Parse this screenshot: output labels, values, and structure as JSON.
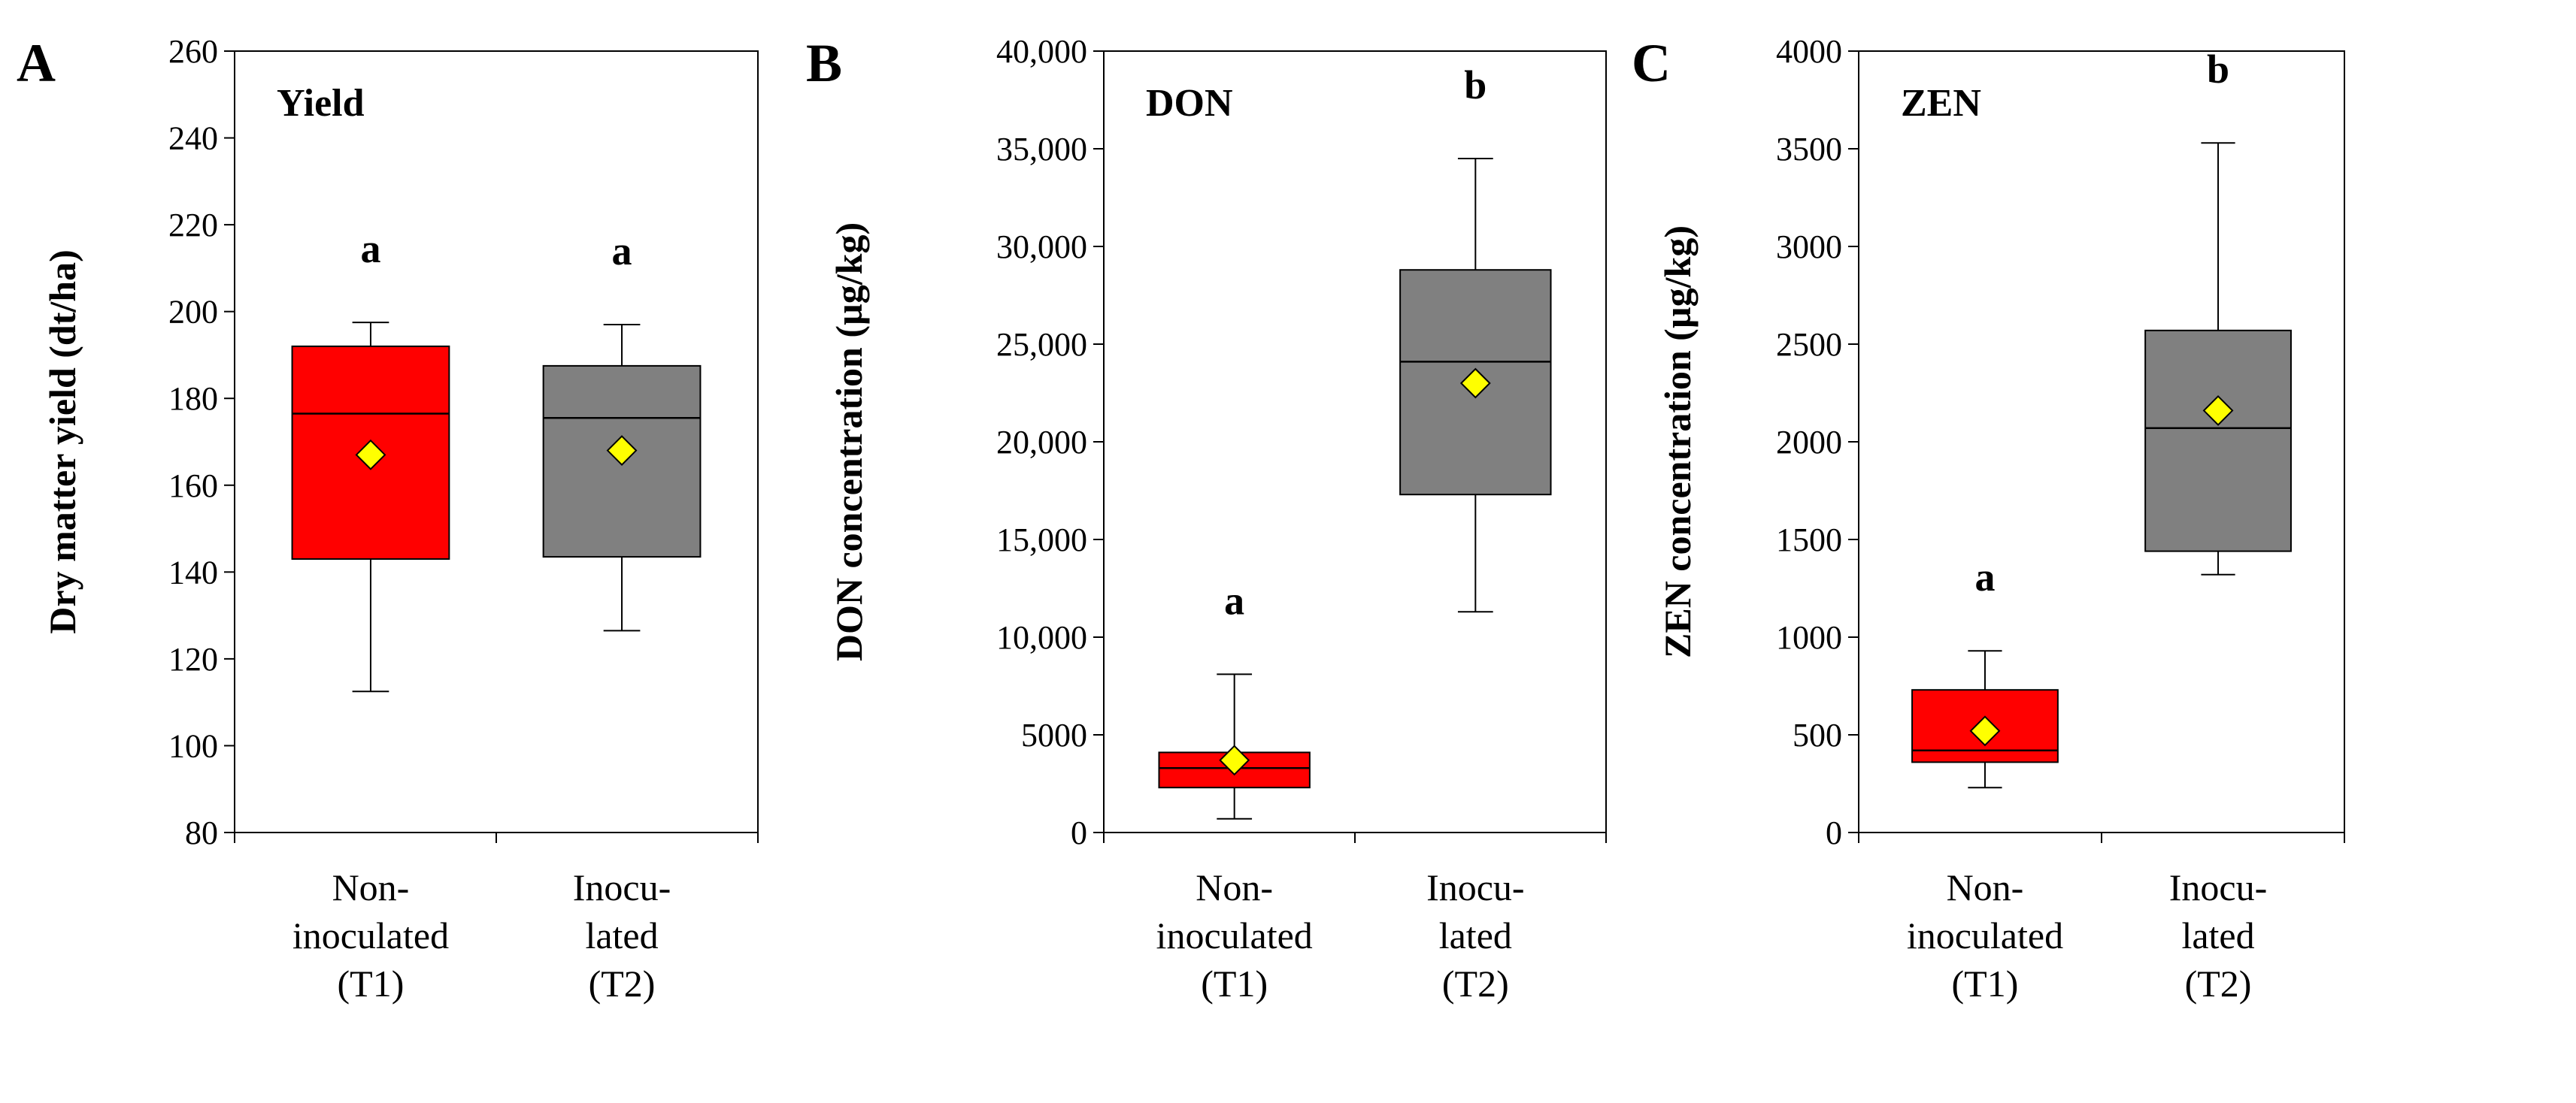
{
  "chart_data": [
    {
      "type": "boxplot",
      "panel_letter": "A",
      "title": "Yield",
      "ylabel": "Dry matter yield (dt/ha)",
      "xlabel": "",
      "ylim": [
        80,
        260
      ],
      "yticks": [
        80,
        100,
        120,
        140,
        160,
        180,
        200,
        220,
        240,
        260
      ],
      "ytick_labels": [
        "80",
        "100",
        "120",
        "140",
        "160",
        "180",
        "200",
        "220",
        "240",
        "260"
      ],
      "categories": [
        {
          "lines": [
            "Non-",
            "inoculated",
            "(T1)"
          ]
        },
        {
          "lines": [
            "Inocu-",
            "lated",
            "(T2)"
          ]
        }
      ],
      "boxes": [
        {
          "name": "Non-inoculated (T1)",
          "color": "#ff0000",
          "whisker_low": 112.5,
          "q1": 143,
          "median": 176.5,
          "q3": 192,
          "whisker_high": 197.5,
          "mean": 167,
          "sig": "a"
        },
        {
          "name": "Inoculated (T2)",
          "color": "#808080",
          "whisker_low": 126.5,
          "q1": 143.5,
          "median": 175.5,
          "q3": 187.5,
          "whisker_high": 197,
          "mean": 168,
          "sig": "a"
        }
      ]
    },
    {
      "type": "boxplot",
      "panel_letter": "B",
      "title": "DON",
      "ylabel": "DON concentration (µg/kg)",
      "xlabel": "",
      "ylim": [
        0,
        40000
      ],
      "yticks": [
        0,
        5000,
        10000,
        15000,
        20000,
        25000,
        30000,
        35000,
        40000
      ],
      "ytick_labels": [
        "0",
        "5000",
        "10,000",
        "15,000",
        "20,000",
        "25,000",
        "30,000",
        "35,000",
        "40,000"
      ],
      "categories": [
        {
          "lines": [
            "Non-",
            "inoculated",
            "(T1)"
          ]
        },
        {
          "lines": [
            "Inocu-",
            "lated",
            "(T2)"
          ]
        }
      ],
      "boxes": [
        {
          "name": "Non-inoculated (T1)",
          "color": "#ff0000",
          "whisker_low": 700,
          "q1": 2300,
          "median": 3300,
          "q3": 4100,
          "whisker_high": 8100,
          "mean": 3700,
          "sig": "a"
        },
        {
          "name": "Inoculated (T2)",
          "color": "#808080",
          "whisker_low": 11300,
          "q1": 17300,
          "median": 24100,
          "q3": 28800,
          "whisker_high": 34500,
          "mean": 23000,
          "sig": "b"
        }
      ]
    },
    {
      "type": "boxplot",
      "panel_letter": "C",
      "title": "ZEN",
      "ylabel": "ZEN concentration (µg/kg)",
      "xlabel": "",
      "ylim": [
        0,
        4000
      ],
      "yticks": [
        0,
        500,
        1000,
        1500,
        2000,
        2500,
        3000,
        3500,
        4000
      ],
      "ytick_labels": [
        "0",
        "500",
        "1000",
        "1500",
        "2000",
        "2500",
        "3000",
        "3500",
        "4000"
      ],
      "categories": [
        {
          "lines": [
            "Non-",
            "inoculated",
            "(T1)"
          ]
        },
        {
          "lines": [
            "Inocu-",
            "lated",
            "(T2)"
          ]
        }
      ],
      "boxes": [
        {
          "name": "Non-inoculated (T1)",
          "color": "#ff0000",
          "whisker_low": 230,
          "q1": 360,
          "median": 420,
          "q3": 730,
          "whisker_high": 930,
          "mean": 520,
          "sig": "a"
        },
        {
          "name": "Inoculated (T2)",
          "color": "#808080",
          "whisker_low": 1320,
          "q1": 1440,
          "median": 2070,
          "q3": 2570,
          "whisker_high": 3530,
          "mean": 2160,
          "sig": "b"
        }
      ]
    }
  ],
  "colors": {
    "mean_marker_fill": "#ffff00",
    "axis": "#000000"
  }
}
